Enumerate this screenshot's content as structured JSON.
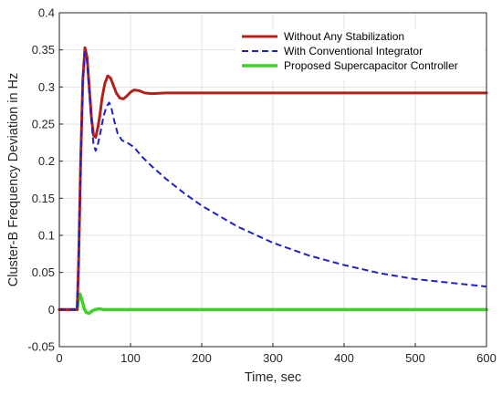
{
  "chart_data": {
    "type": "line",
    "xlabel": "Time, sec",
    "ylabel": "Cluster-B Frequency Deviation in Hz",
    "xlim": [
      0,
      600
    ],
    "ylim": [
      -0.05,
      0.4
    ],
    "xticks": [
      "0",
      "100",
      "200",
      "300",
      "400",
      "500",
      "600"
    ],
    "yticks": [
      "-0.05",
      "0",
      "0.05",
      "0.1",
      "0.15",
      "0.2",
      "0.25",
      "0.3",
      "0.35",
      "0.4"
    ],
    "grid": true,
    "legend_position": "top-right",
    "series": [
      {
        "name": "Without Any Stabilization",
        "color": "#b3211b",
        "style": "solid",
        "points": [
          [
            0,
            0
          ],
          [
            25,
            0
          ],
          [
            27,
            0.06
          ],
          [
            30,
            0.2
          ],
          [
            33,
            0.31
          ],
          [
            36,
            0.353
          ],
          [
            39,
            0.34
          ],
          [
            42,
            0.3
          ],
          [
            45,
            0.26
          ],
          [
            48,
            0.235
          ],
          [
            51,
            0.232
          ],
          [
            54,
            0.245
          ],
          [
            57,
            0.262
          ],
          [
            60,
            0.285
          ],
          [
            64,
            0.305
          ],
          [
            68,
            0.315
          ],
          [
            72,
            0.312
          ],
          [
            76,
            0.302
          ],
          [
            80,
            0.292
          ],
          [
            85,
            0.285
          ],
          [
            90,
            0.284
          ],
          [
            95,
            0.288
          ],
          [
            100,
            0.293
          ],
          [
            105,
            0.296
          ],
          [
            112,
            0.295
          ],
          [
            120,
            0.292
          ],
          [
            130,
            0.291
          ],
          [
            150,
            0.292
          ],
          [
            175,
            0.292
          ],
          [
            200,
            0.292
          ],
          [
            300,
            0.292
          ],
          [
            400,
            0.292
          ],
          [
            500,
            0.292
          ],
          [
            600,
            0.292
          ]
        ]
      },
      {
        "name": "With Conventional Integrator",
        "color": "#1f1fcc",
        "style": "dashed",
        "points": [
          [
            0,
            0
          ],
          [
            25,
            0
          ],
          [
            27,
            0.06
          ],
          [
            30,
            0.2
          ],
          [
            33,
            0.31
          ],
          [
            36,
            0.347
          ],
          [
            39,
            0.335
          ],
          [
            42,
            0.295
          ],
          [
            45,
            0.255
          ],
          [
            48,
            0.223
          ],
          [
            51,
            0.214
          ],
          [
            54,
            0.222
          ],
          [
            58,
            0.24
          ],
          [
            62,
            0.26
          ],
          [
            66,
            0.273
          ],
          [
            70,
            0.279
          ],
          [
            73,
            0.272
          ],
          [
            77,
            0.255
          ],
          [
            82,
            0.237
          ],
          [
            88,
            0.228
          ],
          [
            95,
            0.225
          ],
          [
            105,
            0.219
          ],
          [
            115,
            0.207
          ],
          [
            130,
            0.193
          ],
          [
            150,
            0.176
          ],
          [
            175,
            0.157
          ],
          [
            200,
            0.14
          ],
          [
            250,
            0.112
          ],
          [
            300,
            0.09
          ],
          [
            350,
            0.073
          ],
          [
            400,
            0.06
          ],
          [
            450,
            0.049
          ],
          [
            500,
            0.041
          ],
          [
            550,
            0.036
          ],
          [
            600,
            0.031
          ]
        ]
      },
      {
        "name": "Proposed Supercapacitor Controller",
        "color": "#3ed12a",
        "style": "solid",
        "points": [
          [
            0,
            0
          ],
          [
            25,
            0
          ],
          [
            27,
            0.015
          ],
          [
            29,
            0.021
          ],
          [
            32,
            0.012
          ],
          [
            35,
            0.001
          ],
          [
            38,
            -0.004
          ],
          [
            42,
            -0.005
          ],
          [
            46,
            -0.002
          ],
          [
            50,
            0.0
          ],
          [
            56,
            0.001
          ],
          [
            62,
            0.0
          ],
          [
            70,
            0.0
          ],
          [
            100,
            0.0
          ],
          [
            200,
            0.0
          ],
          [
            300,
            0.0
          ],
          [
            400,
            0.0
          ],
          [
            500,
            0.0
          ],
          [
            600,
            0.0
          ]
        ]
      }
    ]
  }
}
